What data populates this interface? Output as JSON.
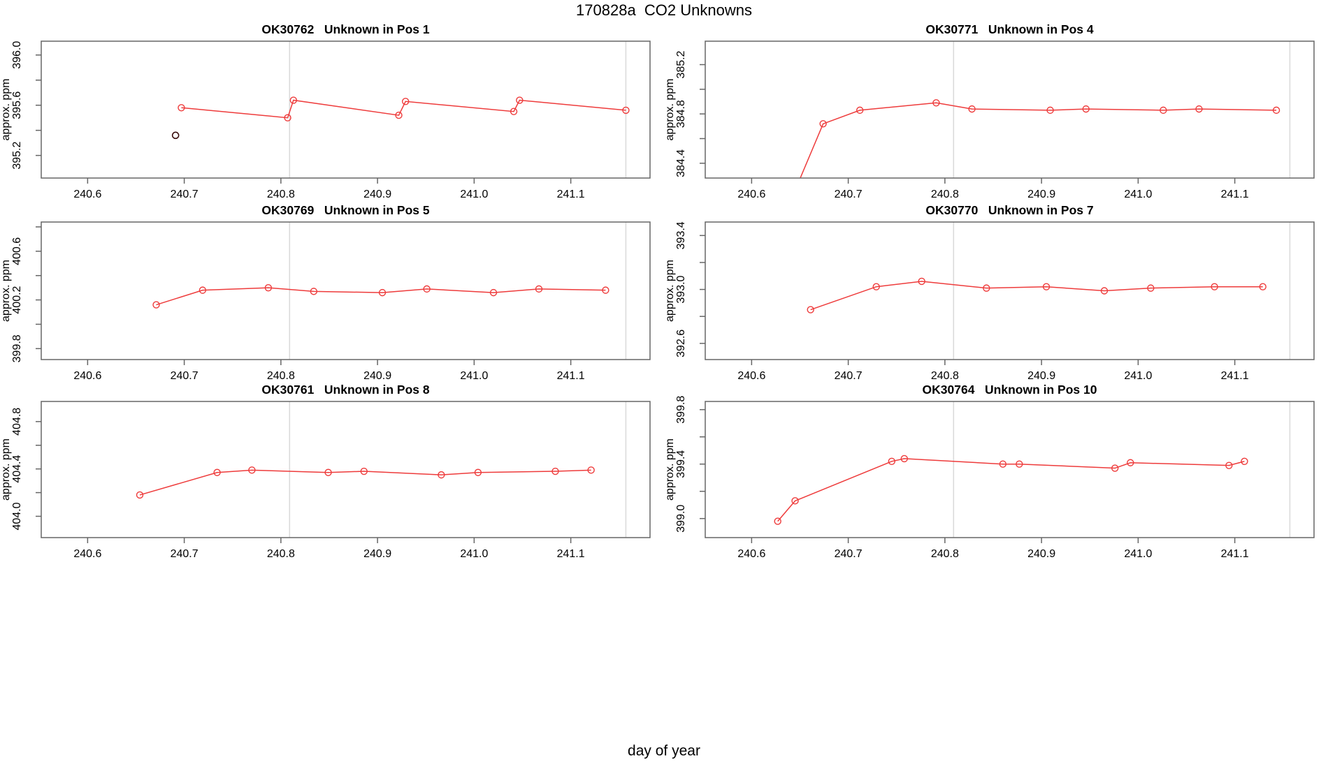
{
  "figure": {
    "title": "170828a  CO2 Unknowns",
    "xlabel": "day of year"
  },
  "chart_data": {
    "type": "line",
    "title": "170828a  CO2 Unknowns",
    "xlabel": "day of year",
    "ylabel": "approx. ppm",
    "x_axis": {
      "lim": [
        240.552,
        241.182
      ],
      "ticks": [
        240.6,
        240.7,
        240.8,
        240.9,
        241.0,
        241.1
      ]
    },
    "vlines": [
      240.809,
      241.157
    ],
    "vline_color": "#d9d9d9",
    "series_color": "#ee3b3b",
    "outlier_color": "#3a0d0d",
    "panels": [
      {
        "id": "OK30762",
        "title": "OK30762   Unknown in Pos 1",
        "ylabel": "approx. ppm",
        "ylim": [
          395.02,
          396.11
        ],
        "yticks_labeled": [
          395.2,
          395.6,
          396.0
        ],
        "ytick_step": 0.2,
        "points": [
          [
            240.697,
            395.58
          ],
          [
            240.807,
            395.5
          ],
          [
            240.813,
            395.64
          ],
          [
            240.922,
            395.52
          ],
          [
            240.929,
            395.63
          ],
          [
            241.041,
            395.55
          ],
          [
            241.047,
            395.64
          ],
          [
            241.157,
            395.56
          ]
        ],
        "outliers": [
          [
            240.691,
            395.36
          ]
        ]
      },
      {
        "id": "OK30771",
        "title": "OK30771   Unknown in Pos 4",
        "ylabel": "approx. ppm",
        "ylim": [
          384.28,
          385.39
        ],
        "yticks_labeled": [
          384.4,
          384.8,
          385.2
        ],
        "ytick_step": 0.2,
        "pre": [
          240.638,
          384.05
        ],
        "points": [
          [
            240.674,
            384.72
          ],
          [
            240.712,
            384.83
          ],
          [
            240.791,
            384.89
          ],
          [
            240.828,
            384.84
          ],
          [
            240.909,
            384.83
          ],
          [
            240.946,
            384.84
          ],
          [
            241.026,
            384.83
          ],
          [
            241.063,
            384.84
          ],
          [
            241.143,
            384.83
          ]
        ],
        "outliers": []
      },
      {
        "id": "OK30769",
        "title": "OK30769   Unknown in Pos 5",
        "ylabel": "approx. ppm",
        "ylim": [
          399.71,
          400.84
        ],
        "yticks_labeled": [
          399.8,
          400.2,
          400.6
        ],
        "ytick_step": 0.2,
        "points": [
          [
            240.671,
            400.16
          ],
          [
            240.719,
            400.28
          ],
          [
            240.787,
            400.3
          ],
          [
            240.834,
            400.27
          ],
          [
            240.905,
            400.26
          ],
          [
            240.951,
            400.29
          ],
          [
            241.02,
            400.26
          ],
          [
            241.067,
            400.29
          ],
          [
            241.136,
            400.28
          ]
        ],
        "outliers": []
      },
      {
        "id": "OK30770",
        "title": "OK30770   Unknown in Pos 7",
        "ylabel": "approx. ppm",
        "ylim": [
          392.48,
          393.5
        ],
        "yticks_labeled": [
          392.6,
          393.0,
          393.4
        ],
        "ytick_step": 0.2,
        "points": [
          [
            240.661,
            392.85
          ],
          [
            240.729,
            393.02
          ],
          [
            240.776,
            393.06
          ],
          [
            240.843,
            393.01
          ],
          [
            240.905,
            393.02
          ],
          [
            240.965,
            392.99
          ],
          [
            241.013,
            393.01
          ],
          [
            241.079,
            393.02
          ],
          [
            241.129,
            393.02
          ]
        ],
        "outliers": []
      },
      {
        "id": "OK30761",
        "title": "OK30761   Unknown in Pos 8",
        "ylabel": "approx. ppm",
        "ylim": [
          403.82,
          404.97
        ],
        "yticks_labeled": [
          404.0,
          404.4,
          404.8
        ],
        "ytick_step": 0.2,
        "points": [
          [
            240.654,
            404.18
          ],
          [
            240.734,
            404.37
          ],
          [
            240.77,
            404.39
          ],
          [
            240.849,
            404.37
          ],
          [
            240.886,
            404.38
          ],
          [
            240.966,
            404.35
          ],
          [
            241.004,
            404.37
          ],
          [
            241.084,
            404.38
          ],
          [
            241.121,
            404.39
          ]
        ],
        "outliers": []
      },
      {
        "id": "OK30764",
        "title": "OK30764   Unknown in Pos 10",
        "ylabel": "approx. ppm",
        "ylim": [
          398.86,
          399.86
        ],
        "yticks_labeled": [
          399.0,
          399.4,
          399.8
        ],
        "ytick_step": 0.2,
        "points": [
          [
            240.627,
            398.98
          ],
          [
            240.645,
            399.13
          ],
          [
            240.745,
            399.42
          ],
          [
            240.758,
            399.44
          ],
          [
            240.86,
            399.4
          ],
          [
            240.877,
            399.4
          ],
          [
            240.976,
            399.37
          ],
          [
            240.992,
            399.41
          ],
          [
            241.094,
            399.39
          ],
          [
            241.11,
            399.42
          ]
        ],
        "outliers": []
      }
    ]
  }
}
